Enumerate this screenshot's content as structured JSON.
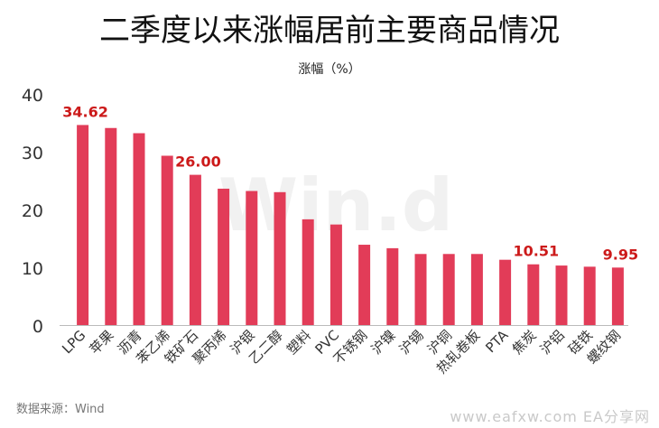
{
  "title": "二季度以来涨幅居前主要商品情况",
  "source": "数据来源：Wind",
  "footer_watermark": "www.eafxw.com  EA分享网",
  "center_watermark": "Win.d",
  "colors": {
    "bar": "#e23c58",
    "label": "#cc1a1a",
    "axis": "#bbbbbb",
    "tick": "#333333"
  },
  "chart_data": {
    "type": "bar",
    "title": "",
    "subtitle": "涨幅（%）",
    "xlabel": "",
    "ylabel": "",
    "ylim": [
      0,
      40
    ],
    "yticks": [
      0,
      10,
      20,
      30,
      40
    ],
    "grid": false,
    "categories": [
      "LPG",
      "苹果",
      "沥青",
      "苯乙烯",
      "铁矿石",
      "聚丙烯",
      "沪银",
      "乙二醇",
      "塑料",
      "PVC",
      "不锈钢",
      "沪镍",
      "沪锡",
      "沪铜",
      "热轧卷板",
      "PTA",
      "焦炭",
      "沪铝",
      "硅铁",
      "螺纹钢"
    ],
    "values": [
      34.62,
      34.1,
      33.2,
      29.3,
      26.0,
      23.6,
      23.2,
      23.0,
      18.3,
      17.4,
      13.9,
      13.3,
      12.3,
      12.3,
      12.3,
      11.3,
      10.51,
      10.3,
      10.1,
      9.95
    ],
    "data_labels": [
      {
        "index": 0,
        "text": "34.62"
      },
      {
        "index": 4,
        "text": "26.00"
      },
      {
        "index": 16,
        "text": "10.51"
      },
      {
        "index": 19,
        "text": "9.95"
      }
    ]
  }
}
